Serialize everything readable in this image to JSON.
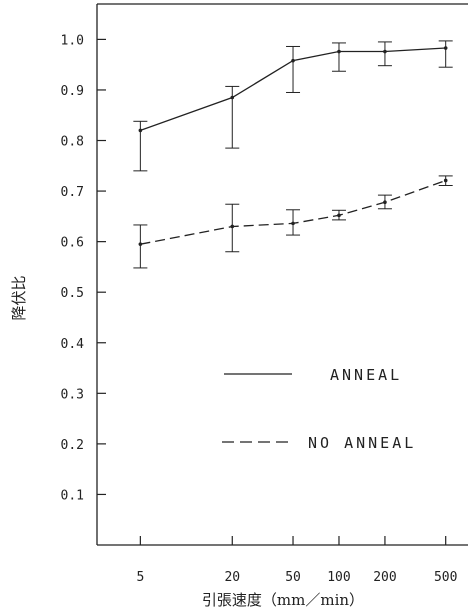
{
  "chart_data": {
    "type": "line",
    "xlabel": "引張速度（mm／min）",
    "ylabel": "降伏比",
    "x_scale": "log",
    "x": [
      5,
      20,
      50,
      100,
      200,
      500
    ],
    "x_tick_labels": [
      "5",
      "20",
      "50",
      "100",
      "200",
      "500"
    ],
    "y_ticks": [
      "0.1",
      "0.2",
      "0.3",
      "0.4",
      "0.5",
      "0.6",
      "0.7",
      "0.8",
      "0.9",
      "1.0"
    ],
    "ylim": [
      0,
      1.07
    ],
    "xlim": [
      2.6,
      700
    ],
    "grid": false,
    "legend_position": "lower-right",
    "series": [
      {
        "name": "ANNEAL",
        "dash": "solid",
        "values": [
          0.82,
          0.885,
          0.958,
          0.976,
          0.976,
          0.983
        ],
        "err_low": [
          0.74,
          0.785,
          0.895,
          0.937,
          0.948,
          0.945
        ],
        "err_high": [
          0.838,
          0.907,
          0.986,
          0.993,
          0.995,
          0.997
        ]
      },
      {
        "name": "NO ANNEAL",
        "dash": "dashed",
        "values": [
          0.595,
          0.63,
          0.636,
          0.652,
          0.678,
          0.721
        ],
        "err_low": [
          0.548,
          0.58,
          0.613,
          0.643,
          0.665,
          0.711
        ],
        "err_high": [
          0.633,
          0.674,
          0.663,
          0.662,
          0.692,
          0.73
        ]
      }
    ]
  }
}
